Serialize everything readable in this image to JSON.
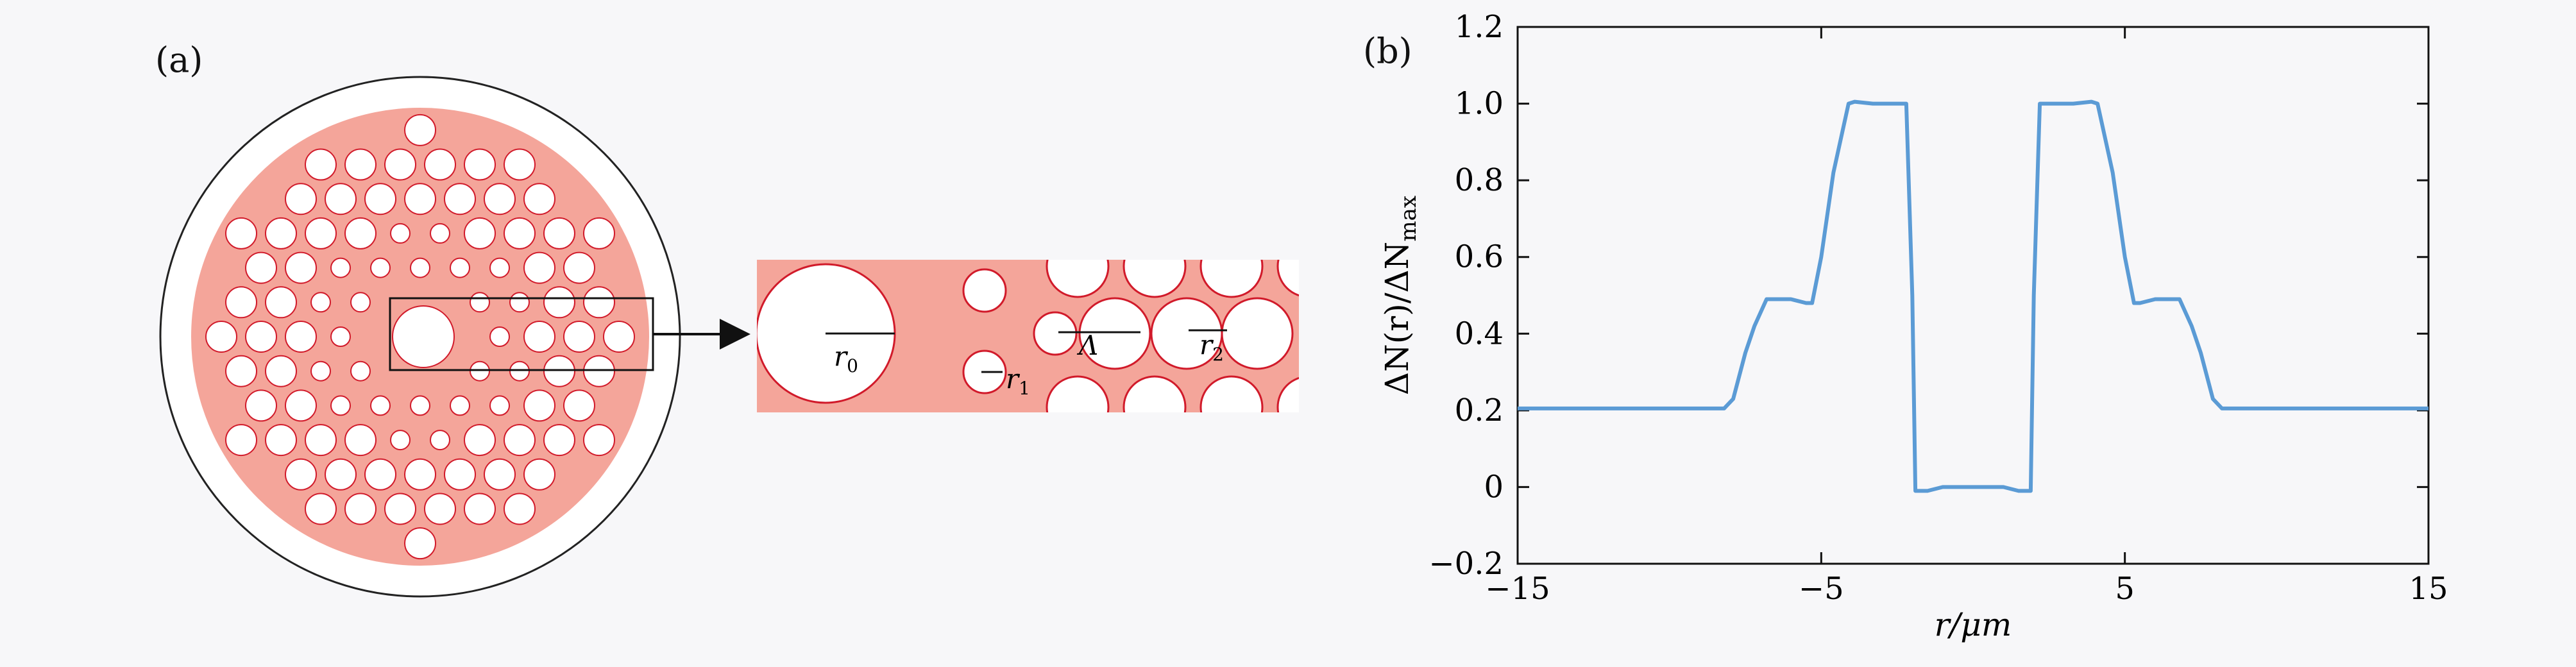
{
  "panel_a": {
    "label": "(a)",
    "fiber_color": "#f4a59a",
    "hole_edge_color": "#d11a2a",
    "labels": {
      "r0": "r",
      "r0_sub": "0",
      "r1": "r",
      "r1_sub": "1",
      "r2": "r",
      "r2_sub": "2",
      "pitch": "Λ"
    }
  },
  "panel_b": {
    "label": "(b)"
  },
  "chart_data": {
    "type": "line",
    "title": "",
    "xlabel": "r/μm",
    "ylabel": "ΔN(r)/ΔNmax",
    "ylabel_parts": {
      "main": "ΔN(r)/ΔN",
      "sub": "max"
    },
    "xlim": [
      -15,
      15
    ],
    "ylim": [
      -0.2,
      1.2
    ],
    "xticks": [
      -15,
      -5,
      5,
      15
    ],
    "xtick_labels": [
      "−15",
      "−5",
      "5",
      "15"
    ],
    "yticks": [
      -0.2,
      0,
      0.2,
      0.4,
      0.6,
      0.8,
      1.0,
      1.2
    ],
    "ytick_labels": [
      "−0.2",
      "0",
      "0.2",
      "0.4",
      "0.6",
      "0.8",
      "1.0",
      "1.2"
    ],
    "grid": false,
    "series": [
      {
        "color": "#5b9bd5",
        "x": [
          -15,
          -8.2,
          -7.9,
          -7.5,
          -7.2,
          -6.8,
          -6.0,
          -5.5,
          -5.3,
          -5.0,
          -4.6,
          -4.1,
          -3.9,
          -3.3,
          -2.2,
          -2.0,
          -1.9,
          -1.5,
          -1.0,
          0,
          1.0,
          1.5,
          1.9,
          2.0,
          2.2,
          3.3,
          3.9,
          4.1,
          4.6,
          5.0,
          5.3,
          5.5,
          6.0,
          6.8,
          7.2,
          7.5,
          7.9,
          8.2,
          15
        ],
        "y": [
          0.205,
          0.205,
          0.23,
          0.35,
          0.42,
          0.49,
          0.49,
          0.48,
          0.48,
          0.6,
          0.82,
          1.0,
          1.005,
          1.0,
          1.0,
          0.5,
          -0.01,
          -0.01,
          0.0,
          0.0,
          0.0,
          -0.01,
          -0.01,
          0.5,
          1.0,
          1.0,
          1.005,
          1.0,
          0.82,
          0.6,
          0.48,
          0.48,
          0.49,
          0.49,
          0.42,
          0.35,
          0.23,
          0.205,
          0.205
        ]
      }
    ]
  }
}
